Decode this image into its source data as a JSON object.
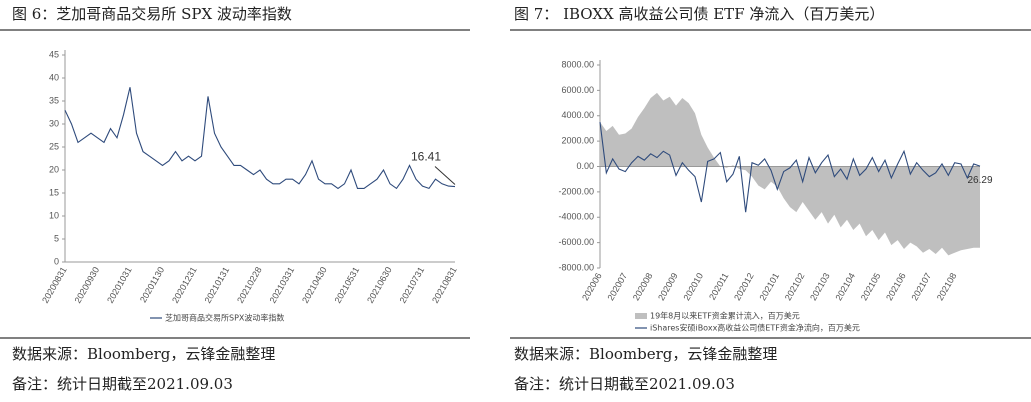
{
  "chart_data": [
    {
      "type": "line",
      "title": "图 6：芝加哥商品交易所 SPX 波动率指数",
      "categories": [
        "20200831",
        null,
        null,
        null,
        null,
        "20200930",
        null,
        null,
        null,
        null,
        "20201031",
        null,
        null,
        null,
        null,
        "20201130",
        null,
        null,
        null,
        null,
        "20201231",
        null,
        null,
        null,
        null,
        "20210131",
        null,
        null,
        null,
        null,
        "20210228",
        null,
        null,
        null,
        null,
        "20210331",
        null,
        null,
        null,
        null,
        "20210430",
        null,
        null,
        null,
        null,
        "20210531",
        null,
        null,
        null,
        null,
        "20210630",
        null,
        null,
        null,
        null,
        "20210731",
        null,
        null,
        null,
        null,
        "20210831"
      ],
      "series": [
        {
          "name": "芝加哥商品交易所SPX波动率指数",
          "color": "#2f4b7c",
          "values": [
            33,
            30,
            26,
            27,
            28,
            27,
            26,
            29,
            27,
            32,
            38,
            28,
            24,
            23,
            22,
            21,
            22,
            24,
            22,
            23,
            22,
            23,
            36,
            28,
            25,
            23,
            21,
            21,
            20,
            19,
            20,
            18,
            17,
            17,
            18,
            18,
            17,
            19,
            22,
            18,
            17,
            17,
            16,
            17,
            20,
            16,
            16,
            17,
            18,
            20,
            17,
            16,
            18,
            21,
            18,
            16.5,
            16,
            18,
            17,
            16.5,
            16.41
          ]
        }
      ],
      "ylim": [
        0,
        45
      ],
      "yticks": [
        0,
        5,
        10,
        15,
        20,
        25,
        30,
        35,
        40,
        45
      ],
      "annotation": "16.41",
      "source": "数据来源：Bloomberg，云锋金融整理",
      "note": "备注：统计日期截至2021.09.03"
    },
    {
      "type": "combo",
      "title": "图 7：  IBOXX 高收益公司债 ETF 净流入（百万美元）",
      "categories": [
        "202006",
        null,
        null,
        null,
        "202007",
        null,
        null,
        null,
        "202008",
        null,
        null,
        null,
        "202009",
        null,
        null,
        null,
        "202010",
        null,
        null,
        null,
        "202011",
        null,
        null,
        null,
        "202012",
        null,
        null,
        null,
        "202101",
        null,
        null,
        null,
        "202102",
        null,
        null,
        null,
        "202103",
        null,
        null,
        null,
        "202104",
        null,
        null,
        null,
        "202105",
        null,
        null,
        null,
        "202106",
        null,
        null,
        null,
        "202107",
        null,
        null,
        null,
        "202108",
        null,
        null,
        null,
        null
      ],
      "series": [
        {
          "name": "19年8月以来ETF资金累计流入，百万美元",
          "kind": "area",
          "color": "#bfbfbf",
          "values": [
            3500,
            2800,
            3200,
            2500,
            2600,
            3000,
            3900,
            4600,
            5400,
            5800,
            5200,
            5500,
            4800,
            5400,
            5000,
            4200,
            2500,
            1500,
            700,
            0,
            -100,
            100,
            -200,
            -300,
            -800,
            -1500,
            -1800,
            -1200,
            -1600,
            -2500,
            -3200,
            -3600,
            -2800,
            -3500,
            -4200,
            -3600,
            -4500,
            -3800,
            -4800,
            -4200,
            -5000,
            -4500,
            -5500,
            -5000,
            -5800,
            -5200,
            -6200,
            -5800,
            -6500,
            -6000,
            -6300,
            -6800,
            -6500,
            -6900,
            -6400,
            -7000,
            -6800,
            -6600,
            -6500,
            -6400,
            -6400
          ]
        },
        {
          "name": "iShares安硕iBoxx高收益公司债ETF资金净流向，百万美元",
          "kind": "line",
          "color": "#2f4b7c",
          "values": [
            3500,
            -500,
            600,
            -200,
            -400,
            300,
            800,
            500,
            1000,
            700,
            1200,
            900,
            -700,
            300,
            -300,
            -800,
            -2800,
            400,
            600,
            1100,
            -1200,
            -600,
            800,
            -3600,
            300,
            100,
            600,
            -300,
            -1800,
            -400,
            -100,
            500,
            -1200,
            700,
            -500,
            300,
            900,
            -800,
            -200,
            -1000,
            600,
            -700,
            -200,
            700,
            -400,
            500,
            -900,
            200,
            1200,
            -600,
            300,
            -300,
            -800,
            -500,
            200,
            -700,
            300,
            200,
            -900,
            200,
            26.29
          ]
        }
      ],
      "ylim": [
        -8000,
        8000
      ],
      "yticks": [
        {
          "value": -8000,
          "label": "-8000.00"
        },
        {
          "value": -6000,
          "label": "-6000.00"
        },
        {
          "value": -4000,
          "label": "-4000.00"
        },
        {
          "value": -2000,
          "label": "-2000.00"
        },
        {
          "value": 0,
          "label": "0.00"
        },
        {
          "value": 2000,
          "label": "2000.00"
        },
        {
          "value": 4000,
          "label": "4000.00"
        },
        {
          "value": 6000,
          "label": "6000.00"
        },
        {
          "value": 8000,
          "label": "8000.00"
        }
      ],
      "annotation": "26.29",
      "source": "数据来源：Bloomberg，云锋金融整理",
      "note": "备注：统计日期截至2021.09.03"
    }
  ]
}
